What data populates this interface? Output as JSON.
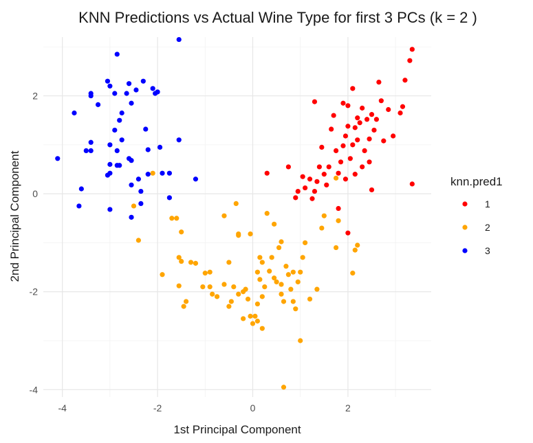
{
  "chart_data": {
    "type": "scatter",
    "title": "KNN Predictions vs Actual Wine Type for first 3 PCs (k = 2 )",
    "xlabel": "1st Principal Component",
    "ylabel": "2nd Principal Component",
    "xlim": [
      -4.4,
      3.75
    ],
    "ylim": [
      -4.15,
      3.2
    ],
    "xticks": [
      -4,
      -2,
      0,
      2
    ],
    "yticks": [
      -4,
      -2,
      0,
      2
    ],
    "grid": true,
    "legend": {
      "title": "knn.pred1",
      "placement": "right"
    },
    "series": [
      {
        "name": "1",
        "color": "#ff0000",
        "points": [
          [
            3.35,
            2.95
          ],
          [
            3.3,
            2.72
          ],
          [
            3.2,
            2.32
          ],
          [
            3.15,
            1.78
          ],
          [
            3.1,
            1.65
          ],
          [
            2.95,
            1.18
          ],
          [
            2.85,
            1.72
          ],
          [
            2.75,
            1.08
          ],
          [
            2.65,
            2.28
          ],
          [
            2.5,
            1.62
          ],
          [
            2.45,
            1.12
          ],
          [
            2.4,
            1.52
          ],
          [
            2.35,
            0.88
          ],
          [
            2.3,
            0.55
          ],
          [
            2.45,
            0.65
          ],
          [
            2.2,
            1.55
          ],
          [
            2.15,
            1.35
          ],
          [
            2.1,
            2.15
          ],
          [
            2.1,
            1.0
          ],
          [
            2.05,
            0.72
          ],
          [
            2.0,
            1.38
          ],
          [
            1.95,
            1.18
          ],
          [
            1.9,
            0.98
          ],
          [
            1.85,
            0.65
          ],
          [
            1.8,
            0.42
          ],
          [
            1.75,
            0.88
          ],
          [
            1.7,
            1.6
          ],
          [
            1.65,
            1.32
          ],
          [
            1.6,
            0.55
          ],
          [
            1.55,
            0.18
          ],
          [
            1.5,
            0.4
          ],
          [
            1.45,
            0.95
          ],
          [
            1.4,
            0.55
          ],
          [
            1.35,
            0.25
          ],
          [
            1.3,
            0.05
          ],
          [
            1.25,
            -0.1
          ],
          [
            1.2,
            0.3
          ],
          [
            1.1,
            0.12
          ],
          [
            1.05,
            0.35
          ],
          [
            0.95,
            0.05
          ],
          [
            0.9,
            -0.08
          ],
          [
            0.75,
            0.55
          ],
          [
            0.3,
            0.42
          ],
          [
            1.3,
            1.88
          ],
          [
            1.9,
            1.85
          ],
          [
            2.0,
            1.8
          ],
          [
            2.3,
            1.75
          ],
          [
            2.55,
            1.3
          ],
          [
            2.6,
            1.52
          ],
          [
            2.25,
            1.45
          ],
          [
            2.15,
            0.4
          ],
          [
            1.95,
            0.3
          ],
          [
            2.5,
            0.08
          ],
          [
            3.35,
            0.2
          ],
          [
            2.0,
            -0.8
          ],
          [
            1.8,
            -0.3
          ],
          [
            2.7,
            1.9
          ],
          [
            2.2,
            1.1
          ]
        ]
      },
      {
        "name": "2",
        "color": "#ffa500",
        "points": [
          [
            -2.5,
            -0.25
          ],
          [
            -2.1,
            0.42
          ],
          [
            -2.4,
            -0.95
          ],
          [
            -1.6,
            -0.5
          ],
          [
            -1.5,
            -0.78
          ],
          [
            -1.55,
            -1.3
          ],
          [
            -1.5,
            -1.38
          ],
          [
            -1.3,
            -1.4
          ],
          [
            -1.2,
            -1.42
          ],
          [
            -1.9,
            -1.65
          ],
          [
            -1.55,
            -1.88
          ],
          [
            -1.4,
            -2.2
          ],
          [
            -1.45,
            -2.3
          ],
          [
            -1.0,
            -1.62
          ],
          [
            -1.05,
            -1.9
          ],
          [
            -0.9,
            -1.9
          ],
          [
            -0.85,
            -2.05
          ],
          [
            -0.75,
            -2.1
          ],
          [
            -0.6,
            -1.85
          ],
          [
            -0.5,
            -1.4
          ],
          [
            -0.4,
            -1.9
          ],
          [
            -0.45,
            -2.2
          ],
          [
            -0.5,
            -2.3
          ],
          [
            -0.3,
            -2.05
          ],
          [
            -0.2,
            -2.0
          ],
          [
            -0.15,
            -1.95
          ],
          [
            -0.1,
            -2.15
          ],
          [
            -0.05,
            -2.5
          ],
          [
            0.0,
            -2.65
          ],
          [
            0.05,
            -2.5
          ],
          [
            0.1,
            -2.6
          ],
          [
            -0.2,
            -2.55
          ],
          [
            0.1,
            -1.6
          ],
          [
            0.15,
            -1.3
          ],
          [
            0.2,
            -1.4
          ],
          [
            0.15,
            -1.75
          ],
          [
            0.25,
            -1.9
          ],
          [
            0.2,
            -2.1
          ],
          [
            0.1,
            -2.25
          ],
          [
            -0.05,
            -0.82
          ],
          [
            -0.3,
            -0.82
          ],
          [
            -0.35,
            -0.2
          ],
          [
            -0.6,
            -0.45
          ],
          [
            0.3,
            -0.4
          ],
          [
            0.45,
            -0.62
          ],
          [
            0.6,
            -0.98
          ],
          [
            0.55,
            -1.1
          ],
          [
            0.4,
            -1.3
          ],
          [
            0.35,
            -1.58
          ],
          [
            0.5,
            -1.8
          ],
          [
            0.45,
            -1.72
          ],
          [
            0.6,
            -1.85
          ],
          [
            0.6,
            -2.05
          ],
          [
            0.65,
            -2.2
          ],
          [
            0.85,
            -2.2
          ],
          [
            0.95,
            -1.8
          ],
          [
            0.9,
            -2.35
          ],
          [
            0.85,
            -1.6
          ],
          [
            1.0,
            -1.6
          ],
          [
            1.05,
            -1.3
          ],
          [
            0.7,
            -1.48
          ],
          [
            1.2,
            -2.15
          ],
          [
            1.35,
            -1.95
          ],
          [
            0.75,
            -1.65
          ],
          [
            0.2,
            -2.75
          ],
          [
            1.0,
            -3.0
          ],
          [
            0.65,
            -3.95
          ],
          [
            1.45,
            -0.7
          ],
          [
            1.5,
            -0.45
          ],
          [
            1.75,
            -1.1
          ],
          [
            1.8,
            -0.55
          ],
          [
            1.75,
            0.32
          ],
          [
            2.2,
            -1.05
          ],
          [
            2.15,
            -1.15
          ],
          [
            2.1,
            -1.62
          ],
          [
            -1.7,
            -0.5
          ],
          [
            -0.9,
            -1.6
          ],
          [
            -0.3,
            -0.85
          ],
          [
            0.8,
            -1.95
          ],
          [
            1.1,
            -1.0
          ]
        ]
      },
      {
        "name": "3",
        "color": "#0000ff",
        "points": [
          [
            -1.55,
            3.15
          ],
          [
            -2.85,
            2.85
          ],
          [
            -3.05,
            2.3
          ],
          [
            -3.4,
            2.05
          ],
          [
            -3.4,
            2.0
          ],
          [
            -3.25,
            1.82
          ],
          [
            -3.0,
            2.2
          ],
          [
            -2.9,
            2.05
          ],
          [
            -2.65,
            2.05
          ],
          [
            -2.55,
            1.85
          ],
          [
            -2.45,
            2.12
          ],
          [
            -2.3,
            2.3
          ],
          [
            -2.6,
            2.25
          ],
          [
            -2.1,
            2.15
          ],
          [
            -2.05,
            2.05
          ],
          [
            -2.0,
            2.08
          ],
          [
            -3.75,
            1.65
          ],
          [
            -2.75,
            1.65
          ],
          [
            -2.8,
            1.5
          ],
          [
            -2.9,
            1.3
          ],
          [
            -2.25,
            1.32
          ],
          [
            -3.4,
            1.05
          ],
          [
            -3.5,
            0.88
          ],
          [
            -3.4,
            0.88
          ],
          [
            -3.0,
            1.0
          ],
          [
            -2.75,
            1.1
          ],
          [
            -2.85,
            0.88
          ],
          [
            -2.2,
            0.9
          ],
          [
            -1.95,
            0.95
          ],
          [
            -4.1,
            0.72
          ],
          [
            -3.0,
            0.6
          ],
          [
            -2.8,
            0.58
          ],
          [
            -2.6,
            0.72
          ],
          [
            -2.55,
            0.68
          ],
          [
            -3.05,
            0.38
          ],
          [
            -3.0,
            0.42
          ],
          [
            -2.85,
            0.58
          ],
          [
            -2.4,
            0.3
          ],
          [
            -2.2,
            0.4
          ],
          [
            -1.9,
            0.42
          ],
          [
            -1.75,
            0.42
          ],
          [
            -1.2,
            0.3
          ],
          [
            -3.6,
            0.1
          ],
          [
            -2.55,
            0.18
          ],
          [
            -2.35,
            0.05
          ],
          [
            -3.65,
            -0.25
          ],
          [
            -3.0,
            -0.32
          ],
          [
            -2.35,
            -0.2
          ],
          [
            -2.55,
            -0.48
          ],
          [
            -1.75,
            -0.08
          ],
          [
            -1.55,
            1.1
          ]
        ]
      }
    ]
  }
}
